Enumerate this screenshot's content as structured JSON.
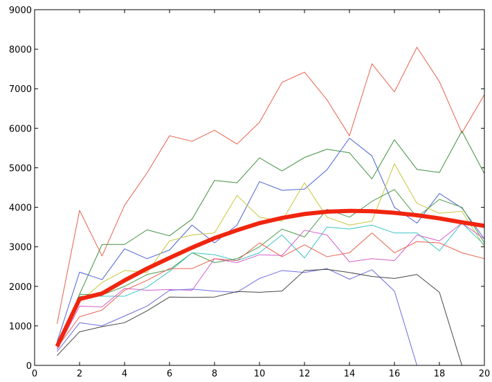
{
  "chart_data": {
    "type": "line",
    "x": [
      1,
      2,
      3,
      4,
      5,
      6,
      7,
      8,
      9,
      10,
      11,
      12,
      13,
      14,
      15,
      16,
      17,
      18,
      19,
      20
    ],
    "xlim": [
      0,
      20
    ],
    "xticks": [
      0,
      2,
      4,
      6,
      8,
      10,
      12,
      14,
      16,
      18,
      20
    ],
    "ylim": [
      0,
      9000
    ],
    "yticks": [
      0,
      1000,
      2000,
      3000,
      4000,
      5000,
      6000,
      7000,
      8000,
      9000
    ],
    "series": [
      {
        "color": "#e8604c",
        "width": 1,
        "values": [
          1050,
          3920,
          2770,
          4050,
          4870,
          5810,
          5670,
          5950,
          5600,
          6150,
          7160,
          7420,
          6720,
          5810,
          7630,
          6920,
          8050,
          7180,
          5880,
          6850
        ]
      },
      {
        "color": "#3f8f3f",
        "width": 1,
        "values": [
          490,
          1800,
          3060,
          3060,
          3430,
          3280,
          3700,
          4680,
          4620,
          5250,
          4920,
          5260,
          5470,
          5380,
          4720,
          5710,
          4960,
          4880,
          5930,
          4850
        ]
      },
      {
        "color": "#4b5fd6",
        "width": 1,
        "values": [
          600,
          2360,
          2170,
          2950,
          2700,
          2920,
          3550,
          3100,
          3550,
          4650,
          4430,
          4460,
          4950,
          5750,
          5300,
          4000,
          3600,
          4350,
          3980,
          3200
        ]
      },
      {
        "color": "#c9c43a",
        "width": 1,
        "values": [
          500,
          1600,
          2100,
          2400,
          2350,
          3150,
          3300,
          3350,
          4300,
          3750,
          3650,
          4620,
          3750,
          3550,
          3650,
          5100,
          4100,
          3850,
          3900,
          3000
        ]
      },
      {
        "color": "#4a9a4a",
        "width": 1,
        "values": [
          450,
          1800,
          1780,
          2000,
          2300,
          2420,
          2850,
          2600,
          2700,
          3000,
          3450,
          3250,
          3950,
          3750,
          4150,
          4450,
          3750,
          4200,
          4000,
          3100
        ]
      },
      {
        "color": "#3cc4c4",
        "width": 1,
        "values": [
          400,
          1750,
          1750,
          1750,
          1980,
          2380,
          2850,
          2800,
          2650,
          2850,
          3300,
          2720,
          3500,
          3450,
          3550,
          3350,
          3350,
          2900,
          3600,
          3050
        ]
      },
      {
        "color": "#d45cc8",
        "width": 1,
        "values": [
          400,
          1500,
          1480,
          1950,
          1900,
          1920,
          1900,
          2700,
          2600,
          2800,
          2780,
          3420,
          3300,
          2620,
          2700,
          2650,
          3300,
          3150,
          3600,
          3200
        ]
      },
      {
        "color": "#e8604c",
        "width": 1,
        "values": [
          450,
          1230,
          1400,
          1900,
          2150,
          2450,
          2450,
          2700,
          2650,
          3100,
          2750,
          3050,
          2750,
          2850,
          3350,
          2850,
          3130,
          3100,
          2850,
          2700
        ]
      },
      {
        "color": "#6a6ae0",
        "width": 1,
        "values": [
          350,
          1080,
          1000,
          1250,
          1500,
          1900,
          1930,
          1880,
          1850,
          2200,
          2400,
          2350,
          2450,
          2180,
          2420,
          1880,
          0,
          null,
          null,
          null
        ]
      },
      {
        "color": "#444444",
        "width": 1,
        "values": [
          250,
          850,
          980,
          1080,
          1380,
          1730,
          1720,
          1730,
          1870,
          1850,
          1880,
          2400,
          2430,
          2350,
          2250,
          2200,
          2300,
          1850,
          0,
          null
        ]
      },
      {
        "color": "#f0250f",
        "width": 6,
        "values": [
          480,
          1680,
          1820,
          2150,
          2450,
          2720,
          2980,
          3220,
          3420,
          3600,
          3730,
          3830,
          3890,
          3910,
          3900,
          3860,
          3800,
          3720,
          3620,
          3530
        ]
      }
    ]
  }
}
